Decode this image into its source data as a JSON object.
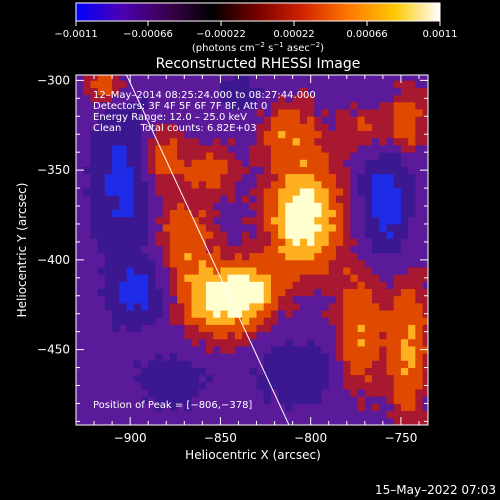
{
  "chart_data": {
    "type": "heatmap",
    "title": "Reconstructed RHESSI Image",
    "xlabel": "Heliocentric X (arcsec)",
    "ylabel": "Heliocentric Y (arcsec)",
    "xlim": [
      -930,
      -735
    ],
    "ylim": [
      -492,
      -297
    ],
    "x_ticks": [
      -900,
      -850,
      -800,
      -750
    ],
    "x_tick_labels": [
      "−900",
      "−850",
      "−800",
      "−750"
    ],
    "y_ticks": [
      -300,
      -350,
      -400,
      -450
    ],
    "y_tick_labels": [
      "−300",
      "−350",
      "−400",
      "−450"
    ],
    "colorbar": {
      "min": -0.0011,
      "max": 0.0011,
      "tick_labels": [
        "−0.0011",
        "−0.00066",
        "−0.00022",
        "0.00022",
        "0.00066",
        "0.0011"
      ],
      "unit_label_main": "(photons cm",
      "unit_exp1": "−2",
      "unit_mid1": " s",
      "unit_exp2": "−1",
      "unit_mid2": " asec",
      "unit_exp3": "−2",
      "unit_end": ")",
      "colors": [
        "#0000ff",
        "#4b00b0",
        "#3c0050",
        "#000000",
        "#7a0000",
        "#d22400",
        "#ff7800",
        "#ffc800",
        "#ffffff"
      ]
    },
    "annotations": {
      "time_range": "12–May–2014 08:25:24.000 to 08:27:44.000",
      "detectors": "Detectors: 3F 4F 5F 6F 7F 8F, Att 0",
      "energy": "Energy Range: 12.0 – 25.0 keV",
      "clean": "Clean      Total counts: 6.82E+03",
      "peak": "Position of Peak = [−806,−378]"
    },
    "peak": {
      "x": -806,
      "y": -378
    },
    "limb_line": [
      [
        -902,
        -297
      ],
      [
        -812,
        -492
      ]
    ],
    "heatmap_colors": {
      "negative": "#3c1890",
      "negative_strong": "#1e2ce8",
      "neutral": "#5a1a9a",
      "positive_low": "#a81830",
      "positive_mid": "#e04a00",
      "positive_high": "#ffb020",
      "positive_peak": "#ffffd0"
    },
    "sources": [
      {
        "x": -806,
        "y": -378,
        "amp": 1.0,
        "sx": 14,
        "sy": 22
      },
      {
        "x": -852,
        "y": -425,
        "amp": 0.82,
        "sx": 16,
        "sy": 14
      },
      {
        "x": -835,
        "y": -418,
        "amp": 0.6,
        "sx": 10,
        "sy": 10
      },
      {
        "x": -872,
        "y": -392,
        "amp": 0.5,
        "sx": 12,
        "sy": 18
      },
      {
        "x": -885,
        "y": -345,
        "amp": 0.5,
        "sx": 10,
        "sy": 14
      },
      {
        "x": -855,
        "y": -352,
        "amp": 0.4,
        "sx": 9,
        "sy": 10
      },
      {
        "x": -775,
        "y": -440,
        "amp": 0.55,
        "sx": 9,
        "sy": 24
      },
      {
        "x": -748,
        "y": -450,
        "amp": 0.6,
        "sx": 8,
        "sy": 30
      },
      {
        "x": -748,
        "y": -325,
        "amp": 0.45,
        "sx": 8,
        "sy": 14
      },
      {
        "x": -815,
        "y": -330,
        "amp": 0.45,
        "sx": 12,
        "sy": 12
      },
      {
        "x": -770,
        "y": -330,
        "amp": 0.35,
        "sx": 10,
        "sy": 10
      },
      {
        "x": -915,
        "y": -305,
        "amp": 0.5,
        "sx": 8,
        "sy": 8
      },
      {
        "x": -897,
        "y": -420,
        "amp": -0.55,
        "sx": 12,
        "sy": 14
      },
      {
        "x": -905,
        "y": -355,
        "amp": -0.6,
        "sx": 12,
        "sy": 30
      },
      {
        "x": -760,
        "y": -370,
        "amp": -0.65,
        "sx": 10,
        "sy": 22
      },
      {
        "x": -880,
        "y": -470,
        "amp": -0.4,
        "sx": 14,
        "sy": 10
      },
      {
        "x": -810,
        "y": -465,
        "amp": -0.45,
        "sx": 14,
        "sy": 12
      },
      {
        "x": -840,
        "y": -310,
        "amp": -0.3,
        "sx": 10,
        "sy": 8
      }
    ]
  },
  "footer": {
    "timestamp": "15–May–2022 07:03"
  }
}
